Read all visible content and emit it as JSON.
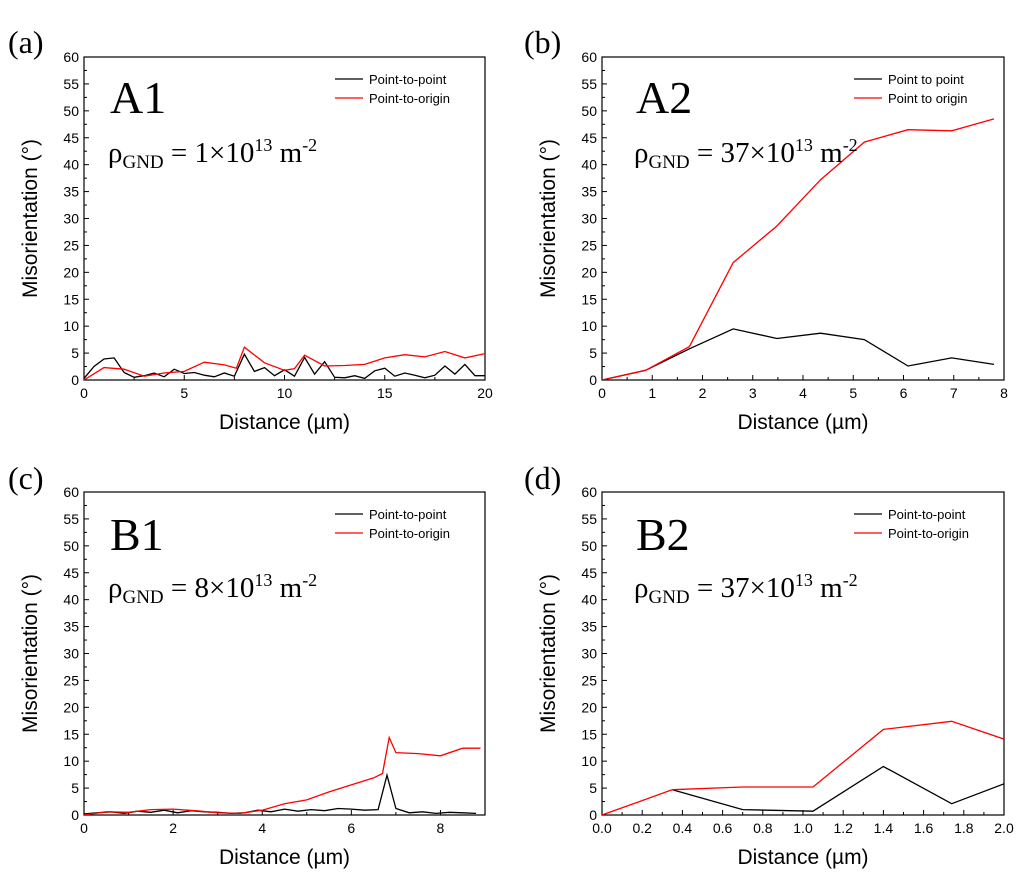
{
  "colors": {
    "point_to_point": "#000000",
    "point_to_origin": "#ff0000",
    "axes": "#000000"
  },
  "chart_data": [
    {
      "type": "line",
      "panel": "(a)",
      "sample": "A1",
      "density": {
        "symbol": "ρ",
        "subscript": "GND",
        "text": "= 1×10",
        "exponent": "13",
        "unit": "m",
        "unit_exponent": "-2"
      },
      "xlabel": "Distance (µm)",
      "ylabel": "Misorientation (°)",
      "xlim": [
        0,
        20
      ],
      "ylim": [
        0,
        60
      ],
      "xticks": [
        0,
        5,
        10,
        15,
        20
      ],
      "xtick_labels": [
        "0",
        "5",
        "10",
        "15",
        "20"
      ],
      "yticks": [
        0,
        5,
        10,
        15,
        20,
        25,
        30,
        35,
        40,
        45,
        50,
        55,
        60
      ],
      "ytick_labels": [
        "0",
        "5",
        "10",
        "15",
        "20",
        "25",
        "30",
        "35",
        "40",
        "45",
        "50",
        "55",
        "60"
      ],
      "legend": "top-right",
      "series": [
        {
          "name": "Point-to-point",
          "color": "#000000",
          "x": [
            0,
            0.5,
            1,
            1.5,
            2,
            2.5,
            3,
            3.5,
            4,
            4.5,
            5,
            5.5,
            6,
            6.5,
            7,
            7.5,
            8,
            8.5,
            9,
            9.5,
            10,
            10.5,
            11,
            11.5,
            12,
            12.5,
            13,
            13.5,
            14,
            14.5,
            15,
            15.5,
            16,
            16.5,
            17,
            17.5,
            18,
            18.5,
            19,
            19.5,
            20
          ],
          "y": [
            0.3,
            2.5,
            3.9,
            4.1,
            1.4,
            0.5,
            0.8,
            1.3,
            0.6,
            2.0,
            1.2,
            1.4,
            0.9,
            0.6,
            1.3,
            0.7,
            4.8,
            1.6,
            2.3,
            0.8,
            1.9,
            0.7,
            4.2,
            1.1,
            3.4,
            0.5,
            0.4,
            0.8,
            0.3,
            1.7,
            2.2,
            0.7,
            1.3,
            0.9,
            0.4,
            0.9,
            2.6,
            1.1,
            2.9,
            0.8,
            0.8
          ]
        },
        {
          "name": "Point-to-origin",
          "color": "#ff0000",
          "x": [
            0,
            1,
            2,
            3,
            4,
            5,
            6,
            7,
            7.6,
            8,
            9,
            10,
            10.5,
            11,
            12,
            13,
            14,
            15,
            16,
            17,
            18,
            19,
            20
          ],
          "y": [
            0,
            2.3,
            2.0,
            0.7,
            1.3,
            1.6,
            3.3,
            2.8,
            2.2,
            6.1,
            3.2,
            1.8,
            2.1,
            4.6,
            2.6,
            2.7,
            2.9,
            4.1,
            4.7,
            4.3,
            5.3,
            4.1,
            4.9
          ]
        }
      ]
    },
    {
      "type": "line",
      "panel": "(b)",
      "sample": "A2",
      "density": {
        "symbol": "ρ",
        "subscript": "GND",
        "text": "= 37×10",
        "exponent": "13",
        "unit": "m",
        "unit_exponent": "-2"
      },
      "xlabel": "Distance (µm)",
      "ylabel": "Misorientation (°)",
      "xlim": [
        0,
        8
      ],
      "ylim": [
        0,
        60
      ],
      "xticks": [
        0,
        1,
        2,
        3,
        4,
        5,
        6,
        7,
        8
      ],
      "xtick_labels": [
        "0",
        "1",
        "2",
        "3",
        "4",
        "5",
        "6",
        "7",
        "8"
      ],
      "yticks": [
        0,
        5,
        10,
        15,
        20,
        25,
        30,
        35,
        40,
        45,
        50,
        55,
        60
      ],
      "ytick_labels": [
        "0",
        "5",
        "10",
        "15",
        "20",
        "25",
        "30",
        "35",
        "40",
        "45",
        "50",
        "55",
        "60"
      ],
      "legend": "top-right",
      "series": [
        {
          "name": "Point to point",
          "color": "#000000",
          "x": [
            0,
            0.87,
            1.74,
            2.61,
            3.48,
            4.35,
            5.22,
            6.09,
            6.96,
            7.8
          ],
          "y": [
            0,
            1.8,
            5.8,
            9.5,
            7.7,
            8.7,
            7.5,
            2.6,
            4.1,
            2.9
          ]
        },
        {
          "name": "Point to origin",
          "color": "#ff0000",
          "x": [
            0,
            0.87,
            1.74,
            2.61,
            3.48,
            4.35,
            5.22,
            6.09,
            6.96,
            7.8
          ],
          "y": [
            0,
            1.8,
            6.2,
            21.8,
            28.6,
            37.2,
            44.2,
            46.5,
            46.3,
            48.5
          ]
        }
      ]
    },
    {
      "type": "line",
      "panel": "(c)",
      "sample": "B1",
      "density": {
        "symbol": "ρ",
        "subscript": "GND",
        "text": "= 8×10",
        "exponent": "13",
        "unit": "m",
        "unit_exponent": "-2"
      },
      "xlabel": "Distance (µm)",
      "ylabel": "Misorientation (°)",
      "xlim": [
        0,
        9
      ],
      "ylim": [
        0,
        60
      ],
      "xticks": [
        0,
        2,
        4,
        6,
        8
      ],
      "xtick_labels": [
        "0",
        "2",
        "4",
        "6",
        "8"
      ],
      "yticks": [
        0,
        5,
        10,
        15,
        20,
        25,
        30,
        35,
        40,
        45,
        50,
        55,
        60
      ],
      "ytick_labels": [
        "0",
        "5",
        "10",
        "15",
        "20",
        "25",
        "30",
        "35",
        "40",
        "45",
        "50",
        "55",
        "60"
      ],
      "legend": "top-right",
      "series": [
        {
          "name": "Point-to-point",
          "color": "#000000",
          "x": [
            0,
            0.3,
            0.6,
            0.9,
            1.2,
            1.5,
            1.8,
            2.1,
            2.4,
            2.7,
            3.0,
            3.3,
            3.6,
            3.9,
            4.2,
            4.5,
            4.8,
            5.1,
            5.4,
            5.7,
            6.0,
            6.3,
            6.6,
            6.8,
            7.0,
            7.3,
            7.6,
            7.9,
            8.2,
            8.5,
            8.8
          ],
          "y": [
            0.2,
            0.4,
            0.6,
            0.3,
            0.7,
            0.5,
            0.9,
            0.4,
            0.8,
            0.6,
            0.5,
            0.3,
            0.4,
            0.9,
            0.6,
            1.1,
            0.7,
            1.0,
            0.8,
            1.2,
            1.1,
            0.9,
            1.0,
            7.4,
            1.2,
            0.4,
            0.6,
            0.3,
            0.5,
            0.4,
            0.3
          ]
        },
        {
          "name": "Point-to-origin",
          "color": "#ff0000",
          "x": [
            0,
            0.5,
            1,
            1.5,
            2,
            2.5,
            3,
            3.5,
            4,
            4.5,
            5,
            5.5,
            6,
            6.5,
            6.7,
            6.85,
            7.0,
            7.5,
            8,
            8.5,
            8.9
          ],
          "y": [
            0,
            0.6,
            0.5,
            1.0,
            1.1,
            0.8,
            0.4,
            0.3,
            0.9,
            2.1,
            2.8,
            4.3,
            5.6,
            6.9,
            7.7,
            14.4,
            11.6,
            11.4,
            11.0,
            12.4,
            12.4
          ]
        }
      ]
    },
    {
      "type": "line",
      "panel": "(d)",
      "sample": "B2",
      "density": {
        "symbol": "ρ",
        "subscript": "GND",
        "text": "= 37×10",
        "exponent": "13",
        "unit": "m",
        "unit_exponent": "-2"
      },
      "xlabel": "Distance (µm)",
      "ylabel": "Misorientation (°)",
      "xlim": [
        0,
        2
      ],
      "ylim": [
        0,
        60
      ],
      "xticks": [
        0,
        0.2,
        0.4,
        0.6,
        0.8,
        1.0,
        1.2,
        1.4,
        1.6,
        1.8,
        2.0
      ],
      "xtick_labels": [
        "0.0",
        "0.2",
        "0.4",
        "0.6",
        "0.8",
        "1.0",
        "1.2",
        "1.4",
        "1.6",
        "1.8",
        "2.0"
      ],
      "yticks": [
        0,
        5,
        10,
        15,
        20,
        25,
        30,
        35,
        40,
        45,
        50,
        55,
        60
      ],
      "ytick_labels": [
        "0",
        "5",
        "10",
        "15",
        "20",
        "25",
        "30",
        "35",
        "40",
        "45",
        "50",
        "55",
        "60"
      ],
      "legend": "top-right",
      "series": [
        {
          "name": "Point-to-point",
          "color": "#000000",
          "x": [
            0.35,
            0.7,
            1.05,
            1.4,
            1.74,
            2.0
          ],
          "y": [
            4.7,
            1.0,
            0.7,
            9.0,
            2.1,
            5.8
          ]
        },
        {
          "name": "Point-to-origin",
          "color": "#ff0000",
          "x": [
            0,
            0.35,
            0.7,
            1.05,
            1.4,
            1.74,
            2.0
          ],
          "y": [
            0,
            4.7,
            5.2,
            5.2,
            15.9,
            17.4,
            14.1
          ]
        }
      ]
    }
  ]
}
